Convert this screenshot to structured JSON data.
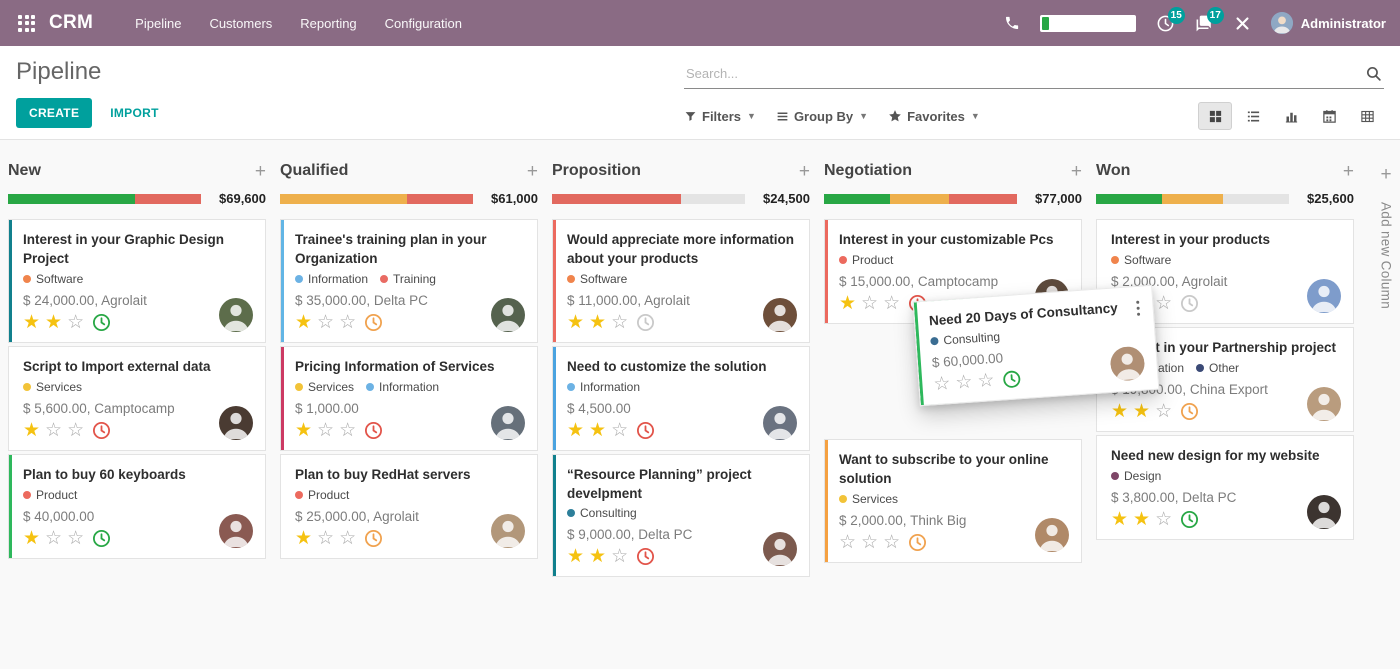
{
  "navbar": {
    "brand": "CRM",
    "menu": [
      "Pipeline",
      "Customers",
      "Reporting",
      "Configuration"
    ],
    "activity_badge": "15",
    "message_badge": "17",
    "user_name": "Administrator",
    "bg_color": "#8a6b84",
    "badge_color": "#00a09d"
  },
  "control_panel": {
    "title": "Pipeline",
    "create_label": "CREATE",
    "import_label": "IMPORT",
    "search_placeholder": "Search...",
    "filters_label": "Filters",
    "group_by_label": "Group By",
    "favorites_label": "Favorites",
    "accent_color": "#00a09d"
  },
  "board": {
    "add_column_label": "Add new Column",
    "palette": {
      "success": "#28a745",
      "warning": "#eeb04c",
      "danger": "#e2695f",
      "muted": "#e4e4e4"
    },
    "clock_colors": {
      "green": "#28a745",
      "red": "#e2544a",
      "orange": "#f0a24f",
      "gray": "#c9c9c9"
    },
    "columns": [
      {
        "name": "New",
        "total": "$69,600",
        "bar": [
          {
            "c": "success",
            "p": 66
          },
          {
            "c": "danger",
            "p": 34
          }
        ],
        "cards": [
          {
            "title": "Interest in your Graphic Design Project",
            "stripe": "#11808d",
            "tags": [
              {
                "label": "Software",
                "color": "#f0844c"
              }
            ],
            "amount": "$ 24,000.00, Agrolait",
            "stars": 2,
            "clock": "green",
            "avatar": "#5d6d4b"
          },
          {
            "title": "Script to Import external data",
            "stripe": null,
            "tags": [
              {
                "label": "Services",
                "color": "#f2c338"
              }
            ],
            "amount": "$ 5,600.00, Camptocamp",
            "stars": 1,
            "clock": "red",
            "avatar": "#4a3b32"
          },
          {
            "title": "Plan to buy 60 keyboards",
            "stripe": "#2eb85c",
            "tags": [
              {
                "label": "Product",
                "color": "#ec6a5e"
              }
            ],
            "amount": "$ 40,000.00",
            "stars": 1,
            "clock": "green",
            "avatar": "#8a5a52"
          }
        ]
      },
      {
        "name": "Qualified",
        "total": "$61,000",
        "bar": [
          {
            "c": "warning",
            "p": 66
          },
          {
            "c": "danger",
            "p": 34
          }
        ],
        "cards": [
          {
            "title": "Trainee's training plan in your Organization",
            "stripe": "#62b5e5",
            "tags": [
              {
                "label": "Information",
                "color": "#6cb2e4"
              },
              {
                "label": "Training",
                "color": "#e96b63"
              }
            ],
            "amount": "$ 35,000.00, Delta PC",
            "stars": 1,
            "clock": "orange",
            "avatar": "#55624e"
          },
          {
            "title": "Pricing Information of Services",
            "stripe": "#cc3a63",
            "tags": [
              {
                "label": "Services",
                "color": "#f2c338"
              },
              {
                "label": "Information",
                "color": "#6cb2e4"
              }
            ],
            "amount": "$ 1,000.00",
            "stars": 1,
            "clock": "red",
            "avatar": "#66707a"
          },
          {
            "title": "Plan to buy RedHat servers",
            "stripe": null,
            "tags": [
              {
                "label": "Product",
                "color": "#ec6a5e"
              }
            ],
            "amount": "$ 25,000.00, Agrolait",
            "stars": 1,
            "clock": "orange",
            "avatar": "#b2977a"
          }
        ]
      },
      {
        "name": "Proposition",
        "total": "$24,500",
        "bar": [
          {
            "c": "danger",
            "p": 67
          }
        ],
        "cards": [
          {
            "title": "Would appreciate more information about your products",
            "stripe": "#ec6a5f",
            "tags": [
              {
                "label": "Software",
                "color": "#f0844c"
              }
            ],
            "amount": "$ 11,000.00, Agrolait",
            "stars": 2,
            "clock": "gray",
            "avatar": "#6e4f3a"
          },
          {
            "title": "Need to customize the solution",
            "stripe": "#4aa3e0",
            "tags": [
              {
                "label": "Information",
                "color": "#6cb2e4"
              }
            ],
            "amount": "$ 4,500.00",
            "stars": 2,
            "clock": "red",
            "avatar": "#6a7280"
          },
          {
            "title": "“Resource Planning” project develpment",
            "stripe": "#11808d",
            "tags": [
              {
                "label": "Consulting",
                "color": "#2d7f9a"
              }
            ],
            "amount": "$ 9,000.00, Delta PC",
            "stars": 2,
            "clock": "red",
            "avatar": "#7c5a4e"
          }
        ]
      },
      {
        "name": "Negotiation",
        "total": "$77,000",
        "bar": [
          {
            "c": "success",
            "p": 34
          },
          {
            "c": "warning",
            "p": 31
          },
          {
            "c": "danger",
            "p": 35
          }
        ],
        "drop_gap": {
          "after_card": 0,
          "height": 112
        },
        "cards": [
          {
            "title": "Interest in your customizable Pcs",
            "stripe": "#ec6a5f",
            "tags": [
              {
                "label": "Product",
                "color": "#ec6a5e"
              }
            ],
            "amount": "$ 15,000.00, Camptocamp",
            "stars": 1,
            "clock": "red",
            "avatar": "#5d4a3c"
          },
          {
            "title": "Want to subscribe to your online solution",
            "stripe": "#f5a142",
            "tags": [
              {
                "label": "Services",
                "color": "#f2c338"
              }
            ],
            "amount": "$ 2,000.00, Think Big",
            "stars": 0,
            "clock": "orange",
            "avatar": "#b08968"
          }
        ]
      },
      {
        "name": "Won",
        "total": "$25,600",
        "bar": [
          {
            "c": "success",
            "p": 34
          },
          {
            "c": "warning",
            "p": 32
          }
        ],
        "cards": [
          {
            "title": "Interest in your products",
            "stripe": null,
            "tags": [
              {
                "label": "Software",
                "color": "#f0844c"
              }
            ],
            "amount": "$ 2,000.00, Agrolait",
            "stars": 1,
            "clock": "gray",
            "avatar": "#7e9ccb"
          },
          {
            "title": "Interest in your Partnership project",
            "stripe": null,
            "tags": [
              {
                "label": "Information",
                "color": "#6cb2e4"
              },
              {
                "label": "Other",
                "color": "#3b4a76"
              }
            ],
            "amount": "$ 19,800.00, China Export",
            "stars": 2,
            "clock": "orange",
            "avatar": "#b99c7e"
          },
          {
            "title": "Need new design for my website",
            "stripe": null,
            "tags": [
              {
                "label": "Design",
                "color": "#7e4668"
              }
            ],
            "amount": "$ 3,800.00, Delta PC",
            "stars": 2,
            "clock": "green",
            "avatar": "#3c3430"
          }
        ]
      }
    ],
    "dragged_card": {
      "title": "Need 20 Days of Consultancy",
      "stripe": "#2eb85c",
      "tags": [
        {
          "label": "Consulting",
          "color": "#3a6d92"
        }
      ],
      "amount": "$ 60,000.00",
      "stars": 0,
      "clock": "green",
      "avatar": "#b08f74"
    }
  }
}
